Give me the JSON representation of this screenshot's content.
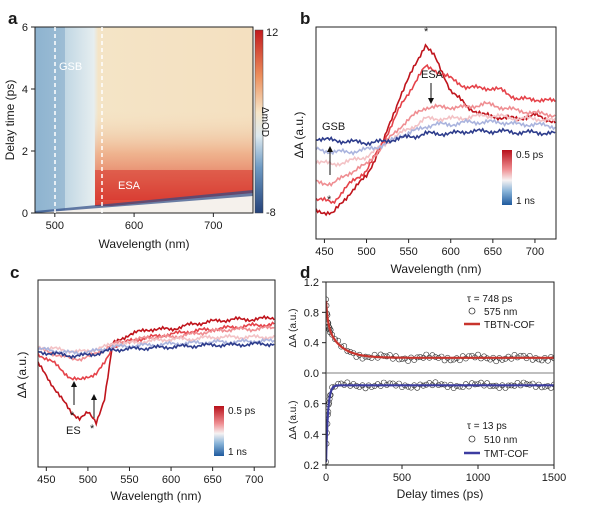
{
  "chart_data": [
    {
      "panel": "a",
      "type": "heatmap",
      "xlabel": "Wavelength (nm)",
      "ylabel": "Delay time (ps)",
      "xlim": [
        475,
        750
      ],
      "ylim": [
        0,
        6
      ],
      "xticks": [
        "500",
        "600",
        "700"
      ],
      "yticks": [
        "0",
        "2",
        "4",
        "6"
      ],
      "colorbar": {
        "label": "ΔmOD",
        "max_label": "12",
        "min_label": "-8",
        "min": -8,
        "max": 12
      },
      "regions": [
        {
          "label": "GSB",
          "x_from": 483,
          "x_to": 550,
          "value": -4
        },
        {
          "label": "ESA",
          "x_from": 550,
          "x_to": 750,
          "value": 8
        }
      ],
      "dashed_lines_x": [
        490,
        550
      ]
    },
    {
      "panel": "b",
      "type": "line",
      "xlabel": "Wavelength (nm)",
      "ylabel": "ΔA (a.u.)",
      "xlim": [
        440,
        725
      ],
      "xticks": [
        "450",
        "500",
        "550",
        "600",
        "650",
        "700"
      ],
      "legend": {
        "top": "0.5 ps",
        "bottom": "1 ns"
      },
      "annotations": [
        "GSB",
        "ESA",
        "*",
        "*"
      ],
      "x": [
        440,
        460,
        480,
        500,
        520,
        540,
        560,
        570,
        580,
        600,
        620,
        640,
        660,
        680,
        700,
        725
      ],
      "series": [
        {
          "color": "#c0141c",
          "values": [
            0.15,
            0.12,
            0.3,
            0.45,
            0.75,
            1.15,
            1.45,
            1.6,
            1.5,
            1.2,
            1.05,
            0.98,
            0.96,
            0.95,
            0.98,
            0.92
          ]
        },
        {
          "color": "#e5434a",
          "values": [
            0.25,
            0.22,
            0.38,
            0.5,
            0.75,
            1.05,
            1.3,
            1.4,
            1.38,
            1.3,
            1.22,
            1.22,
            1.2,
            1.12,
            1.12,
            1.1
          ]
        },
        {
          "color": "#ef8e92",
          "values": [
            0.4,
            0.38,
            0.48,
            0.55,
            0.72,
            0.88,
            1.0,
            1.05,
            1.05,
            1.05,
            1.05,
            1.08,
            1.05,
            1.02,
            1.0,
            0.98
          ]
        },
        {
          "color": "#f3c2c5",
          "values": [
            0.58,
            0.55,
            0.58,
            0.62,
            0.72,
            0.82,
            0.9,
            0.95,
            0.95,
            0.95,
            0.96,
            0.98,
            0.97,
            0.95,
            0.95,
            0.93
          ]
        },
        {
          "color": "#aab4de",
          "values": [
            0.68,
            0.66,
            0.66,
            0.68,
            0.72,
            0.8,
            0.85,
            0.88,
            0.9,
            0.9,
            0.92,
            0.92,
            0.92,
            0.9,
            0.9,
            0.88
          ]
        },
        {
          "color": "#2d3c8c",
          "values": [
            0.78,
            0.76,
            0.75,
            0.74,
            0.75,
            0.78,
            0.8,
            0.82,
            0.82,
            0.82,
            0.84,
            0.84,
            0.84,
            0.83,
            0.83,
            0.82
          ]
        }
      ]
    },
    {
      "panel": "c",
      "type": "line",
      "xlabel": "Wavelength (nm)",
      "ylabel": "ΔA (a.u.)",
      "xlim": [
        440,
        725
      ],
      "xticks": [
        "450",
        "500",
        "550",
        "600",
        "650",
        "700"
      ],
      "legend": {
        "top": "0.5 ps",
        "bottom": "1 ns"
      },
      "annotations": [
        "ES",
        "*",
        "*"
      ],
      "x": [
        440,
        460,
        480,
        490,
        500,
        510,
        520,
        530,
        550,
        575,
        600,
        625,
        650,
        675,
        700,
        725
      ],
      "series": [
        {
          "color": "#c0141c",
          "values": [
            0.45,
            0.2,
            -0.05,
            -0.1,
            -0.05,
            -0.15,
            0.1,
            0.65,
            0.75,
            0.8,
            0.8,
            0.85,
            0.88,
            0.9,
            0.9,
            0.92
          ]
        },
        {
          "color": "#e5434a",
          "values": [
            0.55,
            0.45,
            0.3,
            0.28,
            0.32,
            0.35,
            0.45,
            0.62,
            0.68,
            0.72,
            0.75,
            0.78,
            0.8,
            0.82,
            0.84,
            0.85
          ]
        },
        {
          "color": "#ef8e92",
          "values": [
            0.6,
            0.55,
            0.5,
            0.5,
            0.52,
            0.55,
            0.6,
            0.65,
            0.68,
            0.72,
            0.72,
            0.75,
            0.78,
            0.8,
            0.8,
            0.82
          ]
        },
        {
          "color": "#f3c2c5",
          "values": [
            0.62,
            0.6,
            0.58,
            0.57,
            0.58,
            0.6,
            0.62,
            0.65,
            0.66,
            0.68,
            0.7,
            0.7,
            0.72,
            0.72,
            0.72,
            0.72
          ]
        },
        {
          "color": "#aab4de",
          "values": [
            0.6,
            0.58,
            0.56,
            0.56,
            0.57,
            0.58,
            0.6,
            0.62,
            0.63,
            0.64,
            0.65,
            0.66,
            0.67,
            0.67,
            0.68,
            0.68
          ]
        },
        {
          "color": "#2d3c8c",
          "values": [
            0.57,
            0.55,
            0.53,
            0.53,
            0.54,
            0.55,
            0.57,
            0.59,
            0.6,
            0.61,
            0.62,
            0.63,
            0.64,
            0.64,
            0.65,
            0.65
          ]
        }
      ]
    },
    {
      "panel": "d",
      "type": "scatter",
      "xlabel": "Delay times (ps)",
      "xlim": [
        0,
        1500
      ],
      "xticks": [
        "0",
        "500",
        "1000",
        "1500"
      ],
      "top": {
        "ylabel": "ΔA (a.u.)",
        "ylim": [
          0,
          1.2
        ],
        "yticks": [
          "0.0",
          "0.4",
          "0.8",
          "1.2"
        ],
        "tau": "τ = 748 ps",
        "marker_label": "575 nm",
        "fit_label": "TBTN-COF",
        "fit_color": "#c8342d",
        "fit": {
          "a1": 0.3,
          "t1": 12,
          "a2": 0.45,
          "t2": 90,
          "offset": 0.2
        }
      },
      "bottom": {
        "ylabel": "ΔA (a.u.)",
        "ylim": [
          0.2,
          0.8
        ],
        "yticks": [
          "0.2",
          "0.4",
          "0.6"
        ],
        "tau": "τ = 13 ps",
        "marker_label": "510 nm",
        "fit_label": "TMT-COF",
        "fit_color": "#3c3ca0",
        "fit": {
          "plateau": 0.72,
          "drop": 0.5,
          "t": 13
        }
      }
    }
  ]
}
